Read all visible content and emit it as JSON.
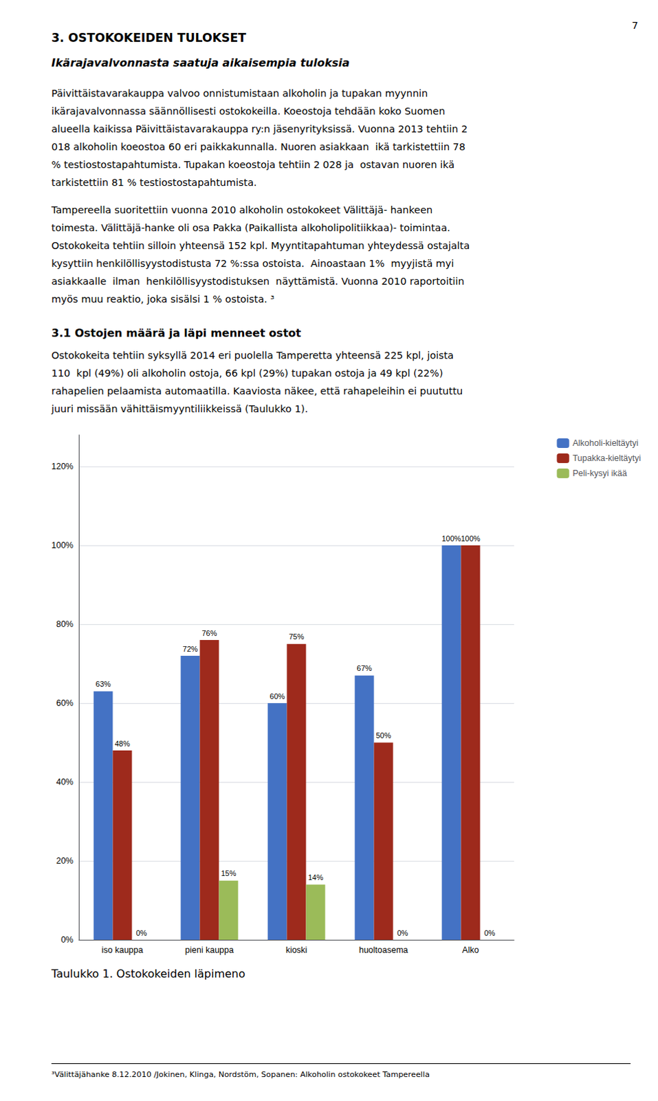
{
  "page_number": "7",
  "heading1": "3. OSTOKOKEIDEN TULOKSET",
  "heading2": "Ikärajavalvonnasta saatuja aikaisempia tuloksia",
  "para1_lines": [
    "Päivittäistavarakauppa valvoo onnistumistaan alkoholin ja tupakan myynnin",
    "ikärajavalvonnassa säännöllisesti ostokokeilla. Koeostoja tehdään koko Suomen",
    "alueella kaikissa Päivittäistavarakauppa ry:n jäsenyrityksissä. Vuonna 2013 tehtiin 2",
    "018 alkoholin koeostoa 60 eri paikkakunnalla. Nuoren asiakkaan  ikä tarkistettiin 78",
    "% testiostostapahtumista. Tupakan koeostoja tehtiin 2 028 ja  ostavan nuoren ikä",
    "tarkistettiin 81 % testiostostapahtumista."
  ],
  "para2_lines": [
    "Tampereella suoritettiin vuonna 2010 alkoholin ostokokeet Välittäjä- hankeen",
    "toimesta. Välittäjä-hanke oli osa Pakka (Paikallista alkoholipolitiikkaa)- toimintaa.",
    "Ostokokeita tehtiin silloin yhteensä 152 kpl. Myyntitapahtuman yhteydessä ostajalta",
    "kysyttiin henkilöllisyystodistusta 72 %:ssa ostoista.  Ainoastaan 1%  myyjistä myi",
    "asiakkaalle  ilman  henkilöllisyystodistuksen  näyttämistä. Vuonna 2010 raportoitiin",
    "myös muu reaktio, joka sisälsi 1 % ostoista. ³"
  ],
  "subheading": "3.1 Ostojen määrä ja läpi menneet ostot",
  "para3_lines": [
    "Ostokokeita tehtiin syksyllä 2014 eri puolella Tamperetta yhteensä 225 kpl, joista",
    "110  kpl (49%) oli alkoholin ostoja, 66 kpl (29%) tupakan ostoja ja 49 kpl (22%)",
    "rahapelien pelaamista automaatilla. Kaaviosta näkee, että rahapeleihin ei puututtu",
    "juuri missään vähittäismyyntiliikkeissä (Taulukko 1)."
  ],
  "table_caption": "Taulukko 1. Ostokokeiden läpimeno",
  "footnote": "³Välittäjähanke 8.12.2010 /Jokinen, Klinga, Nordstöm, Sopanen: Alkoholin ostokokeet Tampereella",
  "chart_data": {
    "type": "bar",
    "categories": [
      "iso kauppa",
      "pieni kauppa",
      "kioski",
      "huoltoasema",
      "Alko"
    ],
    "series": [
      {
        "name": "Alkoholi-kieltäytyi",
        "color": "#4472C4",
        "values": [
          63,
          72,
          60,
          67,
          100
        ],
        "value_labels": [
          "63%",
          "72%",
          "60%",
          "67%",
          "100%"
        ]
      },
      {
        "name": "Tupakka-kieltäytyi",
        "color": "#9E2A1C",
        "values": [
          48,
          76,
          75,
          50,
          100
        ],
        "value_labels": [
          "48%",
          "76%",
          "75%",
          "50%",
          "100%"
        ]
      },
      {
        "name": "Peli-kysyi ikää",
        "color": "#9BBB59",
        "values": [
          0,
          15,
          14,
          0,
          0
        ],
        "value_labels": [
          "0%",
          "15%",
          "14%",
          "0%",
          "0%"
        ]
      }
    ],
    "ylim": [
      0,
      128
    ],
    "yticks": [
      {
        "value": 0,
        "label": "0%"
      },
      {
        "value": 20,
        "label": "20%"
      },
      {
        "value": 40,
        "label": "40%"
      },
      {
        "value": 60,
        "label": "60%"
      },
      {
        "value": 80,
        "label": "80%"
      },
      {
        "value": 100,
        "label": "100%"
      },
      {
        "value": 120,
        "label": "120%"
      }
    ],
    "grid": true,
    "legend": "right",
    "data_labels": true
  }
}
